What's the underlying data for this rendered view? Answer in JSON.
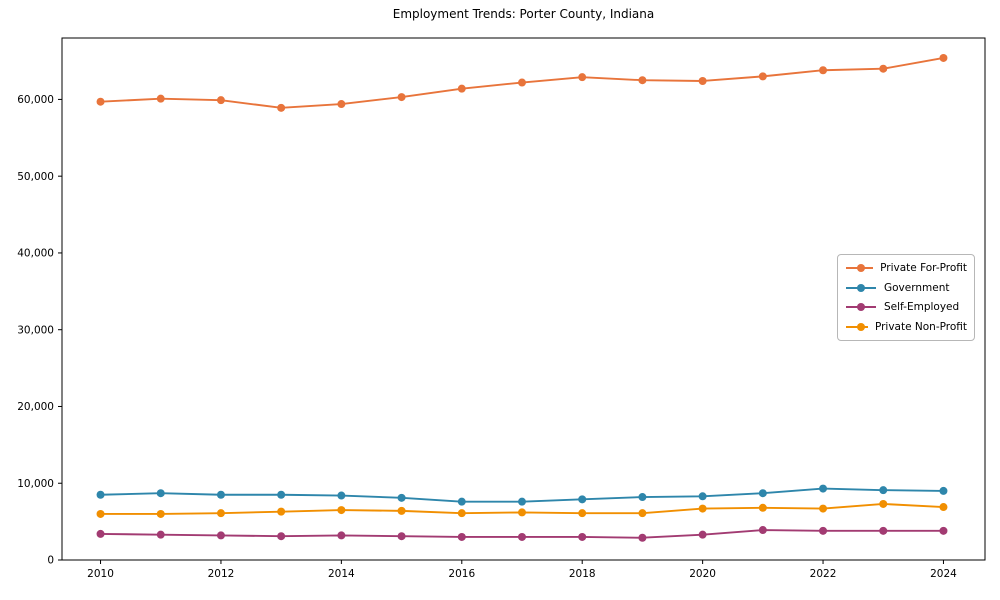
{
  "chart_data": {
    "type": "line",
    "title": "Employment Trends: Porter County, Indiana",
    "xlabel": "",
    "ylabel": "",
    "x": [
      2010,
      2011,
      2012,
      2013,
      2014,
      2015,
      2016,
      2017,
      2018,
      2019,
      2020,
      2021,
      2022,
      2023,
      2024
    ],
    "series": [
      {
        "name": "Private For-Profit",
        "color": "#E8743B",
        "values": [
          59700,
          60100,
          59900,
          58900,
          59400,
          60300,
          61400,
          62200,
          62900,
          62500,
          62400,
          63000,
          63800,
          64000,
          65400
        ]
      },
      {
        "name": "Government",
        "color": "#2E86AB",
        "values": [
          8500,
          8700,
          8500,
          8500,
          8400,
          8100,
          7600,
          7600,
          7900,
          8200,
          8300,
          8700,
          9300,
          9100,
          9000
        ]
      },
      {
        "name": "Self-Employed",
        "color": "#A23B72",
        "values": [
          3400,
          3300,
          3200,
          3100,
          3200,
          3100,
          3000,
          3000,
          3000,
          2900,
          3300,
          3900,
          3800,
          3800,
          3800
        ]
      },
      {
        "name": "Private Non-Profit",
        "color": "#F18F01",
        "values": [
          6000,
          6000,
          6100,
          6300,
          6500,
          6400,
          6100,
          6200,
          6100,
          6100,
          6700,
          6800,
          6700,
          7300,
          6900
        ]
      }
    ],
    "xlim": [
      2009.36,
      2024.69
    ],
    "ylim": [
      0,
      68000
    ],
    "x_ticks": {
      "values": [
        2010,
        2012,
        2014,
        2016,
        2018,
        2020,
        2022,
        2024
      ],
      "labels": [
        "2010",
        "2012",
        "2014",
        "2016",
        "2018",
        "2020",
        "2022",
        "2024"
      ]
    },
    "y_ticks": {
      "values": [
        0,
        10000,
        20000,
        30000,
        40000,
        50000,
        60000
      ],
      "labels": [
        "0",
        "10,000",
        "20,000",
        "30,000",
        "40,000",
        "50,000",
        "60,000"
      ]
    },
    "grid": false,
    "legend_position": "center-right",
    "axis_color": "#000000",
    "background_color": "#ffffff"
  }
}
